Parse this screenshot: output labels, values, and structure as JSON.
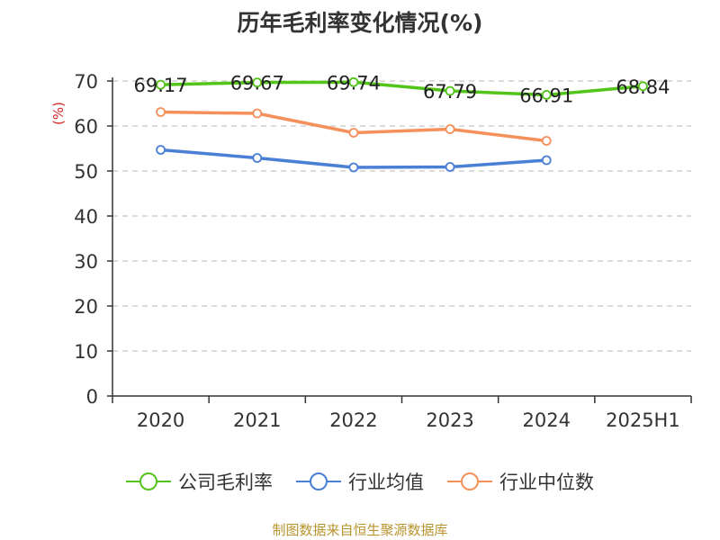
{
  "chart_data": {
    "type": "line",
    "title": "历年毛利率变化情况(%)",
    "ylabel": "(%)",
    "xlabel": "",
    "ylim": [
      0,
      70
    ],
    "yticks": [
      "0",
      "10",
      "20",
      "30",
      "40",
      "50",
      "60",
      "70"
    ],
    "categories": [
      "2020",
      "2021",
      "2022",
      "2023",
      "2024",
      "2025H1"
    ],
    "grid": true,
    "legend_position": "bottom",
    "series": [
      {
        "name": "公司毛利率",
        "color": "#52c41a",
        "values": [
          69.17,
          69.67,
          69.74,
          67.79,
          66.91,
          68.84
        ],
        "labels": [
          "69.17",
          "69.67",
          "69.74",
          "67.79",
          "66.91",
          "68.84"
        ]
      },
      {
        "name": "行业均值",
        "color": "#4a7fd6",
        "values": [
          54.7,
          52.9,
          50.8,
          50.9,
          52.4,
          null
        ]
      },
      {
        "name": "行业中位数",
        "color": "#f5905a",
        "values": [
          63.1,
          62.8,
          58.5,
          59.3,
          56.7,
          null
        ]
      }
    ]
  },
  "footer": {
    "source": "制图数据来自恒生聚源数据库"
  }
}
